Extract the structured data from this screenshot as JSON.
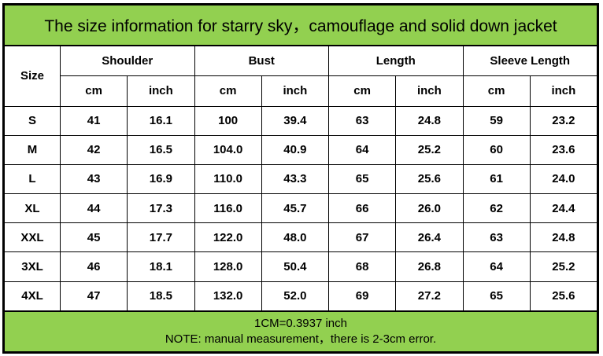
{
  "title": "The size information for starry sky，camouflage and solid down jacket",
  "headers": {
    "size": "Size",
    "groups": [
      "Shoulder",
      "Bust",
      "Length",
      "Sleeve Length"
    ],
    "units": [
      "cm",
      "inch"
    ]
  },
  "rows": [
    [
      "S",
      "41",
      "16.1",
      "100",
      "39.4",
      "63",
      "24.8",
      "59",
      "23.2"
    ],
    [
      "M",
      "42",
      "16.5",
      "104.0",
      "40.9",
      "64",
      "25.2",
      "60",
      "23.6"
    ],
    [
      "L",
      "43",
      "16.9",
      "110.0",
      "43.3",
      "65",
      "25.6",
      "61",
      "24.0"
    ],
    [
      "XL",
      "44",
      "17.3",
      "116.0",
      "45.7",
      "66",
      "26.0",
      "62",
      "24.4"
    ],
    [
      "XXL",
      "45",
      "17.7",
      "122.0",
      "48.0",
      "67",
      "26.4",
      "63",
      "24.8"
    ],
    [
      "3XL",
      "46",
      "18.1",
      "128.0",
      "50.4",
      "68",
      "26.8",
      "64",
      "25.2"
    ],
    [
      "4XL",
      "47",
      "18.5",
      "132.0",
      "52.0",
      "69",
      "27.2",
      "65",
      "25.6"
    ]
  ],
  "footer": {
    "line1": "1CM=0.3937 inch",
    "line2": "NOTE: manual measurement，there is 2-3cm error."
  },
  "colors": {
    "accent": "#92d050"
  }
}
